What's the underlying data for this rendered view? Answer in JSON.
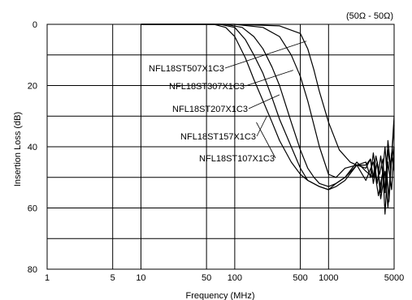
{
  "chart_data": {
    "type": "line",
    "title": "",
    "annotation": "(50Ω - 50Ω)",
    "xlabel": "Frequency (MHz)",
    "ylabel": "Insertion Loss (dB)",
    "x_scale": "log",
    "xlim": [
      1,
      5000
    ],
    "ylim": [
      0,
      80
    ],
    "y_inverted": true,
    "grid": true,
    "x_ticks": [
      1,
      5,
      10,
      50,
      100,
      500,
      1000,
      5000
    ],
    "x_tick_labels": [
      "1",
      "5",
      "10",
      "50",
      "100",
      "500",
      "1000",
      "5000"
    ],
    "y_ticks": [
      0,
      20,
      40,
      60,
      80
    ],
    "y_tick_labels": [
      "0",
      "20",
      "40",
      "60",
      "80"
    ],
    "line_color": "#000000",
    "series": [
      {
        "name": "NFL18ST507X1C3",
        "x": [
          10,
          100,
          300,
          500,
          600,
          700,
          800,
          1000,
          1300,
          1700,
          2000,
          2500,
          2800,
          3000,
          3200,
          3500,
          3800,
          4000,
          4300,
          4600,
          5000
        ],
        "y": [
          0,
          0,
          0.5,
          3,
          8,
          15,
          22,
          32,
          41,
          45,
          46,
          46,
          44,
          50,
          43,
          49,
          44,
          55,
          38,
          47,
          33
        ]
      },
      {
        "name": "NFL18ST307X1C3",
        "x": [
          10,
          100,
          200,
          300,
          400,
          500,
          600,
          700,
          800,
          1000,
          1200,
          1500,
          2000,
          2500,
          2800,
          3000,
          3300,
          3600,
          4000,
          4300,
          4600,
          5000
        ],
        "y": [
          0,
          0,
          1,
          4,
          10,
          17,
          25,
          33,
          40,
          49,
          50,
          47,
          46,
          45,
          50,
          42,
          52,
          43,
          55,
          41,
          48,
          30
        ]
      },
      {
        "name": "NFL18ST207X1C3",
        "x": [
          10,
          80,
          120,
          160,
          200,
          250,
          300,
          400,
          500,
          600,
          700,
          800,
          1000,
          1200,
          1500,
          2000,
          2500,
          2800,
          3000,
          3300,
          3600,
          4000,
          4400,
          4700,
          5000
        ],
        "y": [
          0,
          0,
          1,
          4,
          8,
          14,
          20,
          32,
          41,
          47,
          50,
          52,
          53,
          52,
          50,
          46,
          47,
          44,
          52,
          45,
          55,
          40,
          58,
          44,
          40
        ]
      },
      {
        "name": "NFL18ST157X1C3",
        "x": [
          10,
          70,
          100,
          130,
          160,
          200,
          250,
          300,
          400,
          500,
          600,
          800,
          1000,
          1200,
          1500,
          2000,
          2500,
          3000,
          3300,
          3600,
          4000,
          4300,
          4700,
          5000
        ],
        "y": [
          0,
          0,
          1,
          5,
          10,
          16,
          24,
          31,
          40,
          47,
          51,
          53,
          54,
          52,
          50,
          45,
          48,
          50,
          45,
          57,
          48,
          60,
          42,
          48
        ]
      },
      {
        "name": "NFL18ST107X1C3",
        "x": [
          10,
          60,
          80,
          100,
          130,
          160,
          200,
          250,
          300,
          400,
          500,
          600,
          800,
          1000,
          1200,
          1500,
          2000,
          2500,
          3000,
          3400,
          3800,
          4000,
          4300,
          4700,
          5000
        ],
        "y": [
          0,
          0,
          1,
          4,
          11,
          18,
          25,
          32,
          38,
          45,
          49,
          51,
          53,
          54,
          53,
          51,
          46,
          51,
          45,
          56,
          48,
          62,
          45,
          54,
          40
        ]
      }
    ]
  }
}
